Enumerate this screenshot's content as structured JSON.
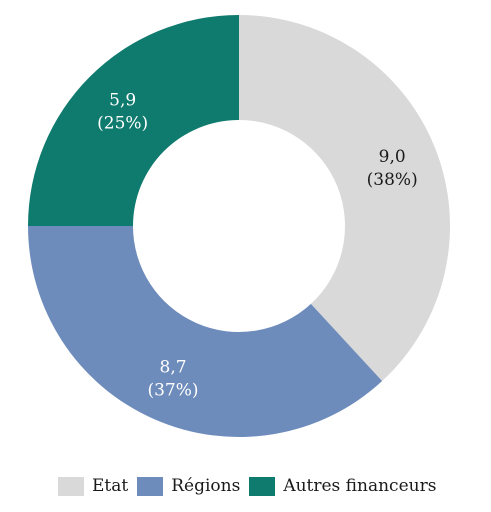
{
  "chart_data": {
    "type": "pie",
    "variant": "donut",
    "title": "",
    "series": [
      {
        "name": "Etat",
        "value": 9.0,
        "value_label": "9,0",
        "percent_label": "(38%)",
        "color": "#d9d9d9",
        "label_color": "#1a1a1a"
      },
      {
        "name": "Régions",
        "value": 8.7,
        "value_label": "8,7",
        "percent_label": "(37%)",
        "color": "#6e8cbb",
        "label_color": "#ffffff"
      },
      {
        "name": "Autres financeurs",
        "value": 5.9,
        "value_label": "5,9",
        "percent_label": "(25%)",
        "color": "#0f7a6e",
        "label_color": "#ffffff"
      }
    ],
    "legend_placement": "bottom",
    "start_angle": "12 o'clock",
    "direction": "clockwise"
  }
}
